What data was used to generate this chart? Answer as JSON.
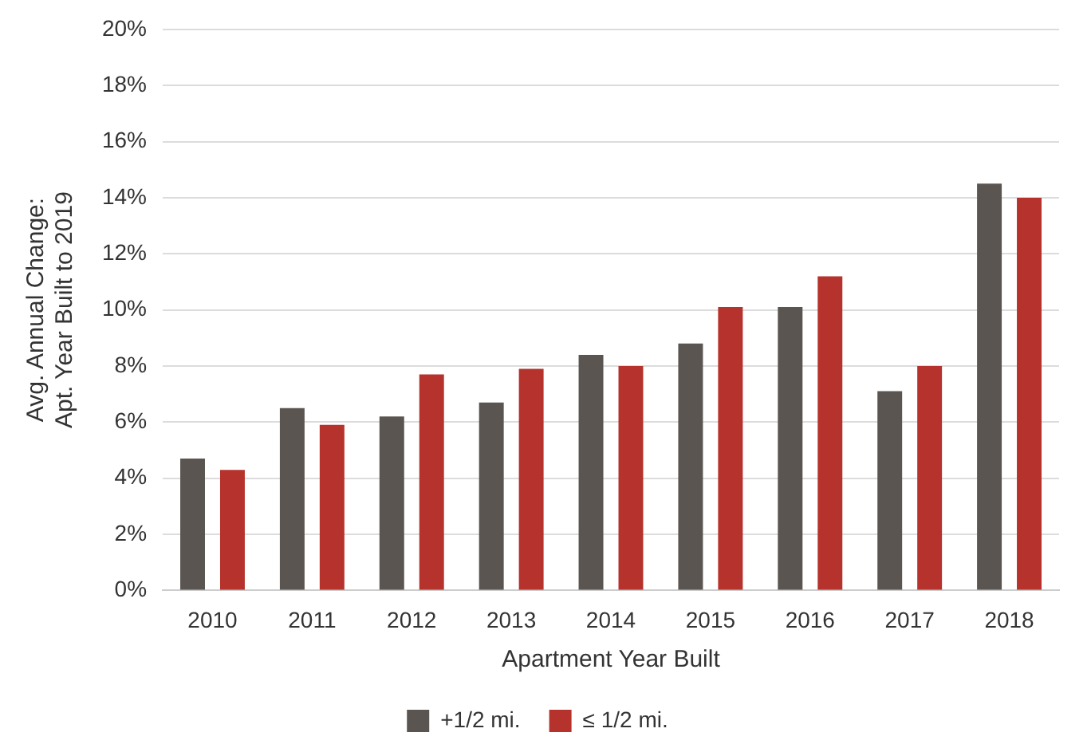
{
  "chart_data": {
    "type": "bar",
    "xlabel": "Apartment Year Built",
    "ylabel": "Avg. Annual Change:\nApt. Year Built to 2019",
    "categories": [
      "2010",
      "2011",
      "2012",
      "2013",
      "2014",
      "2015",
      "2016",
      "2017",
      "2018"
    ],
    "series": [
      {
        "name": "+1/2 mi.",
        "color": "#5a5551",
        "values": [
          4.7,
          6.5,
          6.2,
          6.7,
          8.4,
          8.8,
          10.1,
          7.1,
          14.5
        ]
      },
      {
        "name": "≤ 1/2 mi.",
        "color": "#b5332c",
        "values": [
          4.3,
          5.9,
          7.7,
          7.9,
          8.0,
          10.1,
          11.2,
          8.0,
          14.0
        ]
      }
    ],
    "ylim": [
      0,
      20
    ],
    "yticks": [
      {
        "value": 0,
        "label": "0%"
      },
      {
        "value": 2,
        "label": "2%"
      },
      {
        "value": 4,
        "label": "4%"
      },
      {
        "value": 6,
        "label": "6%"
      },
      {
        "value": 8,
        "label": "8%"
      },
      {
        "value": 10,
        "label": "10%"
      },
      {
        "value": 12,
        "label": "12%"
      },
      {
        "value": 14,
        "label": "14%"
      },
      {
        "value": 16,
        "label": "16%"
      },
      {
        "value": 18,
        "label": "18%"
      },
      {
        "value": 20,
        "label": "20%"
      }
    ],
    "grid": "y",
    "legend": "bottom"
  }
}
